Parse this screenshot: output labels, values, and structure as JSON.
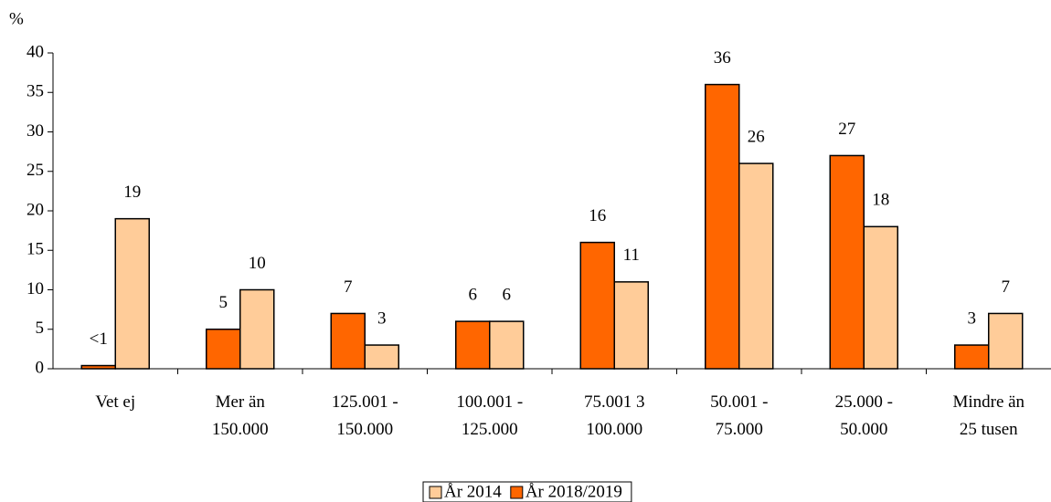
{
  "chart_data": {
    "type": "bar",
    "y_label": "%",
    "categories": [
      "Vet ej",
      "Mer än\n150.000",
      "125.001 -\n150.000",
      "100.001 -\n125.000",
      "75.001 3\n100.000",
      "50.001 -\n75.000",
      "25.000 -\n50.000",
      "Mindre än\n25 tusen"
    ],
    "series": [
      {
        "name": "År 2018/2019",
        "color": "#ff6600",
        "values": [
          0.4,
          5,
          7,
          6,
          16,
          36,
          27,
          3
        ],
        "value_labels": [
          "<1",
          "5",
          "7",
          "6",
          "16",
          "36",
          "27",
          "3"
        ]
      },
      {
        "name": "År 2014",
        "color": "#ffcc99",
        "values": [
          19,
          10,
          3,
          6,
          11,
          26,
          18,
          7
        ]
      }
    ],
    "ylim": [
      0,
      40
    ],
    "yticks": [
      0,
      5,
      10,
      15,
      20,
      25,
      30,
      35,
      40
    ],
    "legend": "bottom"
  }
}
